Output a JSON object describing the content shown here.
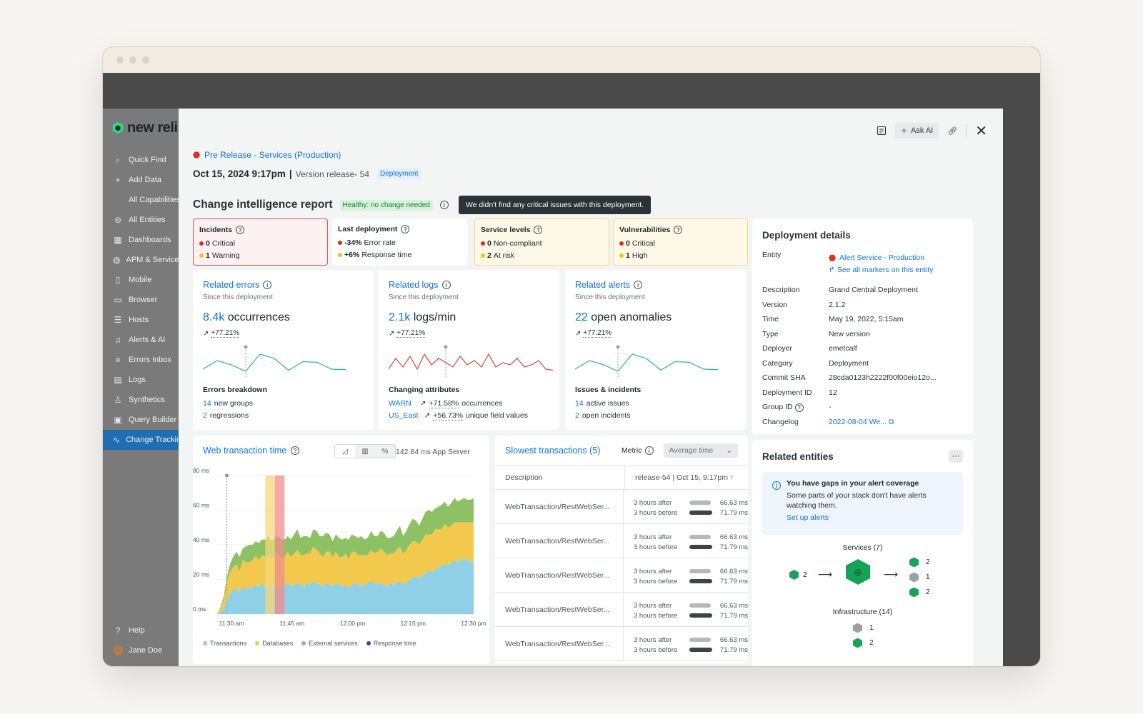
{
  "sidebar": {
    "brand": "new reli",
    "items": [
      {
        "icon": "search-icon",
        "glyph": "⌕",
        "label": "Quick Find"
      },
      {
        "icon": "plus-icon",
        "glyph": "+",
        "label": "Add Data"
      },
      {
        "icon": "",
        "glyph": "",
        "label": "All Capabilities",
        "sub": true
      },
      {
        "icon": "entities-icon",
        "glyph": "⊜",
        "label": "All Entities"
      },
      {
        "icon": "dashboard-icon",
        "glyph": "▦",
        "label": "Dashboards"
      },
      {
        "icon": "globe-icon",
        "glyph": "◍",
        "label": "APM & Services"
      },
      {
        "icon": "mobile-icon",
        "glyph": "▯",
        "label": "Mobile"
      },
      {
        "icon": "browser-icon",
        "glyph": "▭",
        "label": "Browser"
      },
      {
        "icon": "hosts-icon",
        "glyph": "☰",
        "label": "Hosts"
      },
      {
        "icon": "bell-icon",
        "glyph": "♫",
        "label": "Alerts & AI"
      },
      {
        "icon": "errors-icon",
        "glyph": "≡",
        "label": "Errors Inbox"
      },
      {
        "icon": "logs-icon",
        "glyph": "▤",
        "label": "Logs"
      },
      {
        "icon": "synthetics-icon",
        "glyph": "♙",
        "label": "Synthetics"
      },
      {
        "icon": "query-icon",
        "glyph": "▣",
        "label": "Query Builder"
      },
      {
        "icon": "change-tracking-icon",
        "glyph": "∿",
        "label": "Change Tracking",
        "active": true
      }
    ],
    "help": "Help",
    "user": "Jane Doe"
  },
  "topbar": {
    "ask_ai": "Ask AI"
  },
  "header": {
    "entity": "Pre Release - Services (Production)",
    "datetime": "Oct 15, 2024 9:17pm",
    "separator": "|",
    "version": "Version release- 54",
    "type_badge": "Deployment",
    "report_title": "Change intelligence report",
    "health_badge": "Healthy: no change needed",
    "tooltip": "We didn't find any critical issues with this deployment."
  },
  "summary": {
    "incidents": {
      "title": "Incidents",
      "r1n": "0",
      "r1": "Critical",
      "r2n": "1",
      "r2": "Warning"
    },
    "last_deployment": {
      "title": "Last deployment",
      "r1n": "-34%",
      "r1": "Error rate",
      "r2n": "+6%",
      "r2": "Response time"
    },
    "service_levels": {
      "title": "Service levels",
      "r1n": "0",
      "r1": "Non-compliant",
      "r2n": "2",
      "r2": "At risk"
    },
    "vulnerabilities": {
      "title": "Vulnerabilities",
      "r1n": "0",
      "r1": "Critical",
      "r2n": "1",
      "r2": "High"
    }
  },
  "related": [
    {
      "title": "Related errors",
      "since": "Since this deployment",
      "num": "8.4k",
      "unit": "occurrences",
      "pct": "+77.21%",
      "section": "Errors breakdown",
      "l1a": "14",
      "l1b": "new groups",
      "l1c": "",
      "l2a": "2",
      "l2b": "regressions",
      "l2c": ""
    },
    {
      "title": "Related logs",
      "since": "Since this deployment",
      "num": "2.1k",
      "unit": "logs/min",
      "pct": "+77.21%",
      "section": "Changing attributes",
      "l1a": "WARN",
      "l1b": "+71.58%",
      "l1c": "occurrences",
      "l2a": "US_East",
      "l2b": "+56.73%",
      "l2c": "unique field values"
    },
    {
      "title": "Related alerts",
      "since": "Since this deployment",
      "num": "22",
      "unit": "open anomalies",
      "pct": "+77.21%",
      "section": "Issues & incidents",
      "l1a": "14",
      "l1b": "active issues",
      "l1c": "",
      "l2a": "2",
      "l2b": "open incidents",
      "l2c": ""
    }
  ],
  "deployment_details": {
    "title": "Deployment details",
    "entity_label": "Entity",
    "entity": "Alert Service - Production",
    "markers_link": "See all markers on this entity",
    "rows": [
      {
        "k": "Description",
        "v": "Grand Central Deployment"
      },
      {
        "k": "Version",
        "v": "2.1.2"
      },
      {
        "k": "Time",
        "v": "May 19, 2022, 5:15am"
      },
      {
        "k": "Type",
        "v": "New version"
      },
      {
        "k": "Deployer",
        "v": "emetcalf"
      },
      {
        "k": "Category",
        "v": "Deployment"
      },
      {
        "k": "Commit SHA",
        "v": "28cda0123h2222f00f00eio12o..."
      },
      {
        "k": "Deployment ID",
        "v": "12"
      },
      {
        "k": "Group ID",
        "v": "-"
      }
    ],
    "changelog_label": "Changelog",
    "changelog": "2022-08-04 We..."
  },
  "web_transaction": {
    "title": "Web transaction time",
    "readout": "142.84 ms App Server",
    "legend": [
      "Transactions",
      "Databases",
      "External services",
      "Response time"
    ]
  },
  "chart_data": {
    "type": "area",
    "title": "Web transaction time",
    "y_ticks": [
      "80 ms",
      "60 ms",
      "40 ms",
      "20 ms",
      "0 ms"
    ],
    "ylim": [
      0,
      80
    ],
    "x_ticks": [
      "11:30 am",
      "11:45 am",
      "12:00 pm",
      "12:15 pm",
      "12:30 pm"
    ],
    "x": [
      0,
      1,
      2,
      3,
      4,
      5,
      6,
      7,
      8,
      9,
      10,
      11,
      12,
      13,
      14,
      15,
      16,
      17,
      18,
      19,
      20,
      21,
      22,
      23,
      24,
      25,
      26,
      27,
      28,
      29,
      30,
      31,
      32,
      33,
      34,
      35,
      36,
      37,
      38,
      39,
      40,
      41,
      42,
      43,
      44,
      45,
      46,
      47,
      48,
      49,
      50,
      51,
      52,
      53,
      54,
      55,
      56,
      57,
      58,
      59,
      60,
      61,
      62,
      63,
      64,
      65,
      66,
      67,
      68,
      69,
      70,
      71,
      72,
      73,
      74,
      75,
      76,
      77,
      78,
      79,
      80
    ],
    "series": [
      {
        "name": "Transactions",
        "color": "#8fd0e6",
        "values": [
          0,
          1,
          3,
          8,
          12,
          14,
          15,
          13,
          16,
          14,
          16,
          15,
          17,
          16,
          18,
          15,
          17,
          16,
          17,
          16,
          15,
          17,
          18,
          16,
          17,
          18,
          17,
          16,
          18,
          17,
          19,
          18,
          17,
          16,
          18,
          17,
          16,
          18,
          17,
          16,
          17,
          15,
          17,
          18,
          17,
          16,
          17,
          18,
          19,
          18,
          17,
          18,
          17,
          16,
          18,
          17,
          18,
          19,
          17,
          18,
          20,
          21,
          22,
          21,
          22,
          24,
          25,
          24,
          26,
          27,
          28,
          29,
          28,
          30,
          31,
          30,
          31,
          32,
          31,
          30,
          31
        ]
      },
      {
        "name": "Databases",
        "color": "#f2c94c",
        "values": [
          0,
          2,
          5,
          10,
          12,
          13,
          14,
          12,
          15,
          16,
          14,
          16,
          17,
          15,
          16,
          18,
          17,
          16,
          18,
          19,
          17,
          16,
          18,
          17,
          18,
          19,
          17,
          18,
          17,
          18,
          20,
          19,
          18,
          17,
          18,
          19,
          17,
          18,
          16,
          17,
          18,
          17,
          19,
          18,
          17,
          18,
          17,
          16,
          18,
          17,
          19,
          20,
          19,
          18,
          17,
          18,
          19,
          20,
          18,
          19,
          20,
          21,
          20,
          19,
          21,
          22,
          21,
          22,
          23,
          22,
          21,
          23,
          22,
          21,
          22,
          23,
          22,
          21,
          22,
          23,
          22
        ]
      },
      {
        "name": "External services",
        "color": "#8cc263",
        "values": [
          0,
          1,
          2,
          3,
          5,
          6,
          7,
          8,
          7,
          9,
          10,
          9,
          8,
          10,
          9,
          10,
          11,
          10,
          9,
          10,
          11,
          10,
          9,
          10,
          11,
          12,
          10,
          11,
          10,
          9,
          10,
          11,
          10,
          12,
          11,
          10,
          9,
          10,
          11,
          10,
          9,
          11,
          10,
          9,
          10,
          11,
          9,
          10,
          11,
          10,
          9,
          10,
          11,
          10,
          9,
          10,
          11,
          12,
          10,
          11,
          12,
          13,
          12,
          11,
          12,
          13,
          14,
          13,
          12,
          13,
          14,
          13,
          12,
          13,
          14,
          12,
          13,
          14,
          13,
          13,
          14
        ]
      }
    ],
    "markers": [
      {
        "x": 3,
        "label": "deployment"
      }
    ],
    "highlight_bands": [
      {
        "from": 15,
        "to": 18,
        "color": "#f6d77c"
      },
      {
        "from": 18,
        "to": 21,
        "color": "#ef8c8c"
      }
    ]
  },
  "slowest": {
    "title": "Slowest transactions (5)",
    "metric_label": "Metric",
    "metric_value": "Average time",
    "col1": "Description",
    "col2": "release-54 | Oct 15, 9:17pm ↑",
    "rows": [
      {
        "name": "WebTransaction/RestWebSer...",
        "after": "3 hours after",
        "after_v": "66.63 ms",
        "before": "3 hours before",
        "before_v": "71.79 ms",
        "after_frac": 0.928,
        "before_frac": 1.0
      },
      {
        "name": "WebTransaction/RestWebSer...",
        "after": "3 hours after",
        "after_v": "66.63 ms",
        "before": "3 hours before",
        "before_v": "71.79 ms",
        "after_frac": 0.928,
        "before_frac": 1.0
      },
      {
        "name": "WebTransaction/RestWebSer...",
        "after": "3 hours after",
        "after_v": "66.63 ms",
        "before": "3 hours before",
        "before_v": "71.79 ms",
        "after_frac": 0.928,
        "before_frac": 1.0
      },
      {
        "name": "WebTransaction/RestWebSer...",
        "after": "3 hours after",
        "after_v": "66.63 ms",
        "before": "3 hours before",
        "before_v": "71.79 ms",
        "after_frac": 0.928,
        "before_frac": 1.0
      },
      {
        "name": "WebTransaction/RestWebSer...",
        "after": "3 hours after",
        "after_v": "66.63 ms",
        "before": "3 hours before",
        "before_v": "71.79 ms",
        "after_frac": 0.928,
        "before_frac": 1.0
      }
    ]
  },
  "related_entities": {
    "title": "Related entities",
    "more": "···",
    "gap_title": "You have gaps in your alert coverage",
    "gap_body": "Some parts of your stack don't have alerts watching them.",
    "gap_link": "Set up alerts",
    "services": "Services (7)",
    "svc_in": "2",
    "svc_out": [
      "2",
      "1",
      "2"
    ],
    "infrastructure": "Infrastructure (14)",
    "infra": [
      "1",
      "2"
    ]
  }
}
